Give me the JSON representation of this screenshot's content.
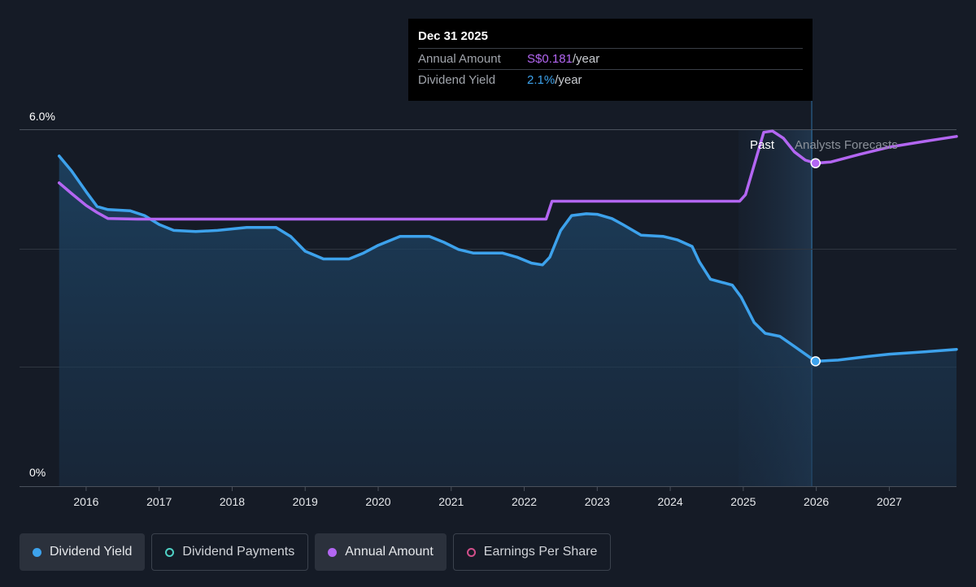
{
  "tooltip": {
    "date": "Dec 31 2025",
    "rows": [
      {
        "label": "Annual Amount",
        "value": "S$0.181",
        "unit": "/year"
      },
      {
        "label": "Dividend Yield",
        "value": "2.1%",
        "unit": "/year"
      }
    ]
  },
  "legend": [
    {
      "label": "Dividend Yield",
      "color": "#3da2ec",
      "style": "filled-dot"
    },
    {
      "label": "Dividend Payments",
      "color": "#4fd1c5",
      "style": "ring"
    },
    {
      "label": "Annual Amount",
      "color": "#b366f2",
      "style": "filled-dot"
    },
    {
      "label": "Earnings Per Share",
      "color": "#d14f8a",
      "style": "ring"
    }
  ],
  "colors": {
    "background": "#151b26",
    "yield": "#3da2ec",
    "amount": "#b366f2",
    "grid": "#3a414c"
  },
  "chart_data": {
    "type": "line",
    "title": "",
    "xlabel": "",
    "ylabel": "",
    "y_tick_labels": [
      "0%",
      "6.0%"
    ],
    "x_tick_labels": [
      "2016",
      "2017",
      "2018",
      "2019",
      "2020",
      "2021",
      "2022",
      "2023",
      "2024",
      "2025",
      "2026",
      "2027"
    ],
    "region_labels": {
      "past": "Past",
      "forecast": "Analysts Forecasts"
    },
    "ylim": [
      0,
      6.0
    ],
    "xlim": [
      2015.6,
      2027.92
    ],
    "forecast_start": 2025.99,
    "highlight_x": 2025.99,
    "series": [
      {
        "name": "Dividend Yield",
        "unit": "%",
        "points": [
          [
            2015.63,
            5.55
          ],
          [
            2015.8,
            5.3
          ],
          [
            2016.0,
            4.95
          ],
          [
            2016.15,
            4.7
          ],
          [
            2016.3,
            4.65
          ],
          [
            2016.6,
            4.63
          ],
          [
            2016.8,
            4.55
          ],
          [
            2017.0,
            4.4
          ],
          [
            2017.2,
            4.3
          ],
          [
            2017.5,
            4.28
          ],
          [
            2017.8,
            4.3
          ],
          [
            2018.2,
            4.35
          ],
          [
            2018.6,
            4.35
          ],
          [
            2018.8,
            4.2
          ],
          [
            2019.0,
            3.95
          ],
          [
            2019.25,
            3.82
          ],
          [
            2019.6,
            3.82
          ],
          [
            2019.8,
            3.92
          ],
          [
            2020.0,
            4.05
          ],
          [
            2020.3,
            4.2
          ],
          [
            2020.7,
            4.2
          ],
          [
            2020.9,
            4.1
          ],
          [
            2021.1,
            3.98
          ],
          [
            2021.3,
            3.92
          ],
          [
            2021.7,
            3.92
          ],
          [
            2021.9,
            3.85
          ],
          [
            2022.1,
            3.75
          ],
          [
            2022.25,
            3.72
          ],
          [
            2022.35,
            3.85
          ],
          [
            2022.5,
            4.3
          ],
          [
            2022.65,
            4.55
          ],
          [
            2022.85,
            4.58
          ],
          [
            2023.0,
            4.57
          ],
          [
            2023.2,
            4.5
          ],
          [
            2023.35,
            4.4
          ],
          [
            2023.6,
            4.22
          ],
          [
            2023.9,
            4.2
          ],
          [
            2024.1,
            4.14
          ],
          [
            2024.3,
            4.03
          ],
          [
            2024.4,
            3.77
          ],
          [
            2024.55,
            3.48
          ],
          [
            2024.85,
            3.38
          ],
          [
            2024.97,
            3.18
          ],
          [
            2025.15,
            2.75
          ],
          [
            2025.3,
            2.57
          ],
          [
            2025.5,
            2.52
          ],
          [
            2025.7,
            2.35
          ],
          [
            2025.99,
            2.1
          ],
          [
            2026.3,
            2.12
          ],
          [
            2026.7,
            2.18
          ],
          [
            2027.0,
            2.22
          ],
          [
            2027.5,
            2.26
          ],
          [
            2027.92,
            2.3
          ]
        ]
      },
      {
        "name": "Annual Amount",
        "unit": "S$",
        "points": [
          [
            2015.63,
            5.1
          ],
          [
            2015.8,
            4.92
          ],
          [
            2016.0,
            4.72
          ],
          [
            2016.15,
            4.6
          ],
          [
            2016.3,
            4.5
          ],
          [
            2016.7,
            4.49
          ],
          [
            2022.3,
            4.49
          ],
          [
            2022.38,
            4.79
          ],
          [
            2024.95,
            4.79
          ],
          [
            2025.03,
            4.9
          ],
          [
            2025.15,
            5.4
          ],
          [
            2025.28,
            5.95
          ],
          [
            2025.4,
            5.97
          ],
          [
            2025.55,
            5.85
          ],
          [
            2025.7,
            5.62
          ],
          [
            2025.85,
            5.48
          ],
          [
            2025.99,
            5.43
          ],
          [
            2026.2,
            5.45
          ],
          [
            2026.6,
            5.58
          ],
          [
            2027.0,
            5.7
          ],
          [
            2027.5,
            5.8
          ],
          [
            2027.92,
            5.88
          ]
        ]
      }
    ]
  }
}
